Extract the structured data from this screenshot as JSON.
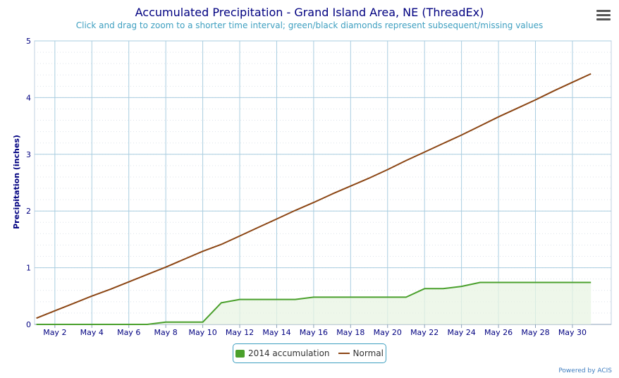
{
  "header": {
    "title": "Accumulated Precipitation - Grand Island Area, NE (ThreadEx)",
    "subtitle": "Click and drag to zoom to a shorter time interval; green/black diamonds represent subsequent/missing values"
  },
  "menu": {
    "icon": "hamburger-menu-icon"
  },
  "credits": "Powered by ACIS",
  "chart_data": {
    "type": "area",
    "title": "Accumulated Precipitation - Grand Island Area, NE (ThreadEx)",
    "ylabel": "Precipitation (inches)",
    "xlabel": "",
    "ylim": [
      0,
      5
    ],
    "yticks": [
      "0",
      "1",
      "2",
      "3",
      "4",
      "5"
    ],
    "x_range": [
      "May 1",
      "May 31"
    ],
    "categories": [
      "May 2",
      "May 4",
      "May 6",
      "May 8",
      "May 10",
      "May 12",
      "May 14",
      "May 16",
      "May 18",
      "May 20",
      "May 22",
      "May 24",
      "May 26",
      "May 28",
      "May 30"
    ],
    "grid": true,
    "legend_position": "bottom-center",
    "series": [
      {
        "name": "2014 accumulation",
        "type": "area",
        "color": "#4aa02c",
        "fill": "#e8f4e3",
        "x": [
          "May 1",
          "May 2",
          "May 3",
          "May 4",
          "May 5",
          "May 6",
          "May 7",
          "May 8",
          "May 9",
          "May 10",
          "May 11",
          "May 12",
          "May 13",
          "May 14",
          "May 15",
          "May 16",
          "May 17",
          "May 18",
          "May 19",
          "May 20",
          "May 21",
          "May 22",
          "May 23",
          "May 24",
          "May 25",
          "May 26",
          "May 27",
          "May 28",
          "May 29",
          "May 30",
          "May 31"
        ],
        "values": [
          0,
          0,
          0,
          0,
          0,
          0,
          0,
          0.04,
          0.04,
          0.04,
          0.38,
          0.44,
          0.44,
          0.44,
          0.44,
          0.48,
          0.48,
          0.48,
          0.48,
          0.48,
          0.48,
          0.63,
          0.63,
          0.67,
          0.74,
          0.74,
          0.74,
          0.74,
          0.74,
          0.74,
          0.74
        ]
      },
      {
        "name": "Normal",
        "type": "line",
        "color": "#8b4513",
        "x": [
          "May 1",
          "May 2",
          "May 3",
          "May 4",
          "May 5",
          "May 6",
          "May 7",
          "May 8",
          "May 9",
          "May 10",
          "May 11",
          "May 12",
          "May 13",
          "May 14",
          "May 15",
          "May 16",
          "May 17",
          "May 18",
          "May 19",
          "May 20",
          "May 21",
          "May 22",
          "May 23",
          "May 24",
          "May 25",
          "May 26",
          "May 27",
          "May 28",
          "May 29",
          "May 30",
          "May 31"
        ],
        "values": [
          0.11,
          0.24,
          0.37,
          0.5,
          0.62,
          0.75,
          0.88,
          1.01,
          1.15,
          1.29,
          1.41,
          1.56,
          1.71,
          1.86,
          2.01,
          2.15,
          2.3,
          2.44,
          2.58,
          2.73,
          2.89,
          3.04,
          3.19,
          3.34,
          3.5,
          3.66,
          3.81,
          3.96,
          4.12,
          4.27,
          4.42
        ]
      }
    ]
  }
}
